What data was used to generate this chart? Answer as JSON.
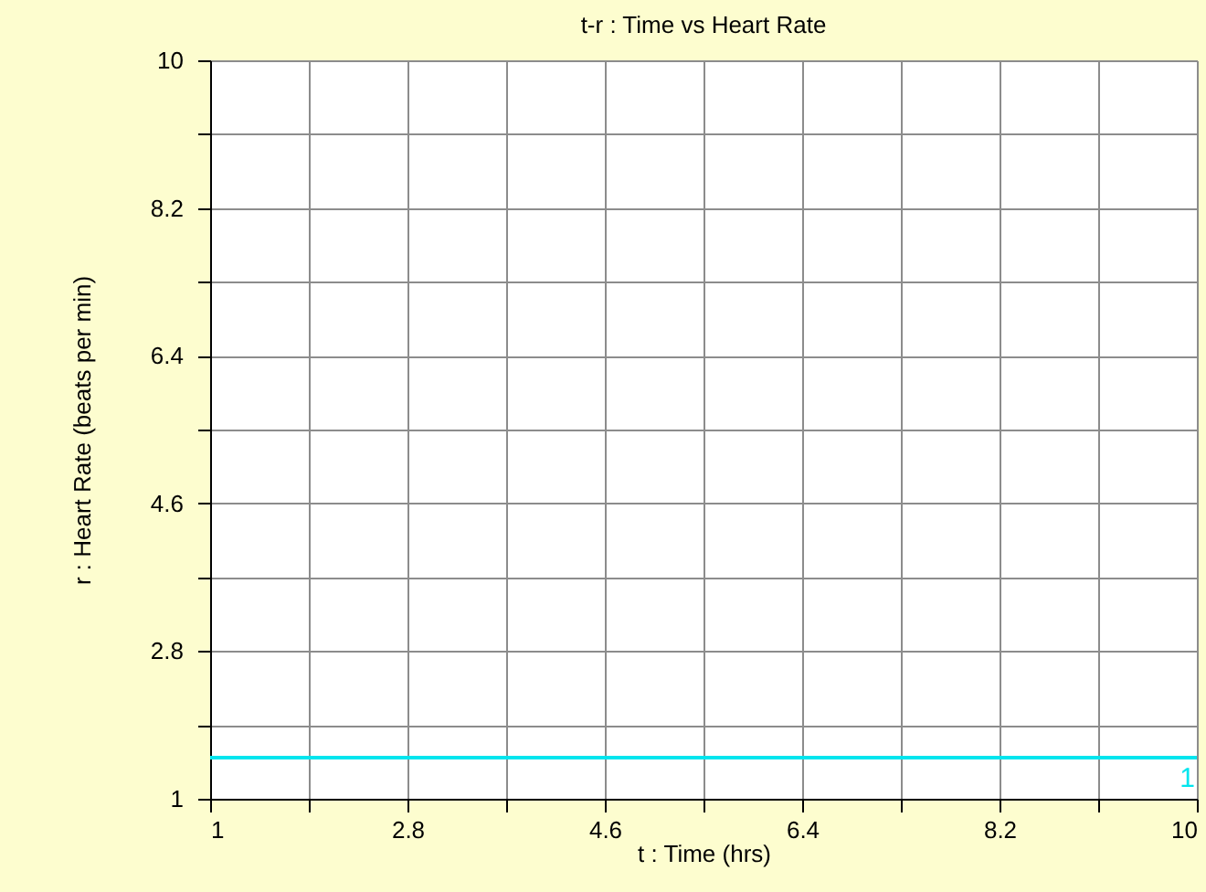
{
  "chart_data": {
    "type": "line",
    "title": "t-r : Time vs Heart Rate",
    "xlabel": "t : Time (hrs)",
    "ylabel": "r : Heart Rate (beats per min)",
    "x": [
      1,
      10
    ],
    "series": [
      {
        "name": "1",
        "color": "#00e5ee",
        "values": [
          1.5,
          1.5
        ]
      }
    ],
    "xlim": [
      1,
      10
    ],
    "ylim": [
      1,
      10
    ],
    "xticks": [
      1,
      {
        "value": 1.9,
        "label": null
      },
      2.8,
      {
        "value": 3.7,
        "label": null
      },
      4.6,
      {
        "value": 5.5,
        "label": null
      },
      6.4,
      {
        "value": 7.3,
        "label": null
      },
      8.2,
      {
        "value": 9.1,
        "label": null
      },
      10
    ],
    "yticks": [
      1,
      {
        "value": 1.9,
        "label": null
      },
      2.8,
      {
        "value": 3.7,
        "label": null
      },
      4.6,
      {
        "value": 5.5,
        "label": null
      },
      6.4,
      {
        "value": 7.3,
        "label": null
      },
      8.2,
      {
        "value": 9.1,
        "label": null
      },
      10
    ],
    "grid": true,
    "legend": false,
    "marker": "none",
    "line_style": "solid"
  }
}
